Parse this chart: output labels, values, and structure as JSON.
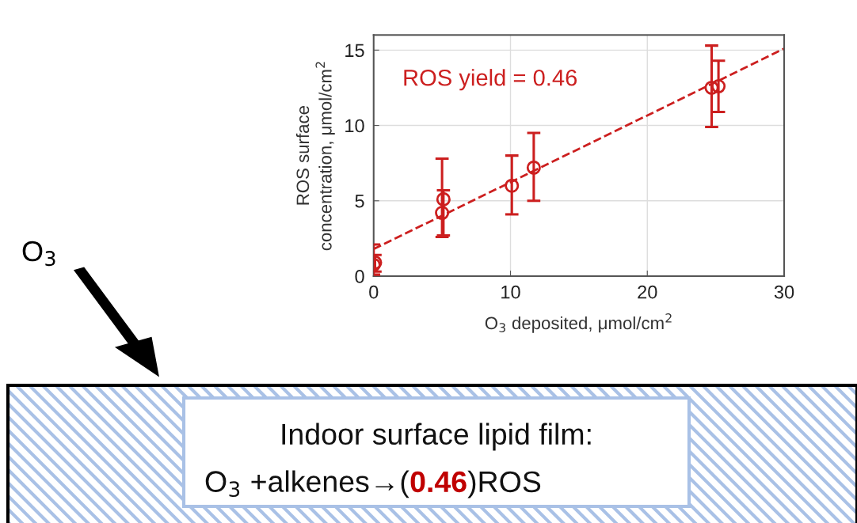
{
  "chart_data": {
    "type": "scatter",
    "xlabel": "O$_{3}$ deposited, μmol/cm$^{2}$",
    "ylabel": "ROS surface\nconcentration, μmol/cm$^{2}$",
    "annotations": [
      "ROS yield = 0.46",
      "O$_{3}$",
      "Indoor surface lipid film:",
      "O$_{3}$ +alkenes→(",
      "0.46",
      ")ROS"
    ],
    "series": [
      {
        "color": "#cc1f1f",
        "marker": "circle",
        "x": [
          0,
          0.1,
          5,
          5.1,
          10.1,
          11.7,
          24.7,
          25.2
        ],
        "values": [
          0.75,
          0.9,
          4.2,
          5.1,
          6.0,
          7.2,
          12.5,
          12.6
        ],
        "errors": [
          [
            0.1,
            2.1
          ],
          [
            0.3,
            1.4
          ],
          [
            2.6,
            7.8
          ],
          [
            2.7,
            5.7
          ],
          [
            4.1,
            8.0
          ],
          [
            5.0,
            9.5
          ],
          [
            9.9,
            15.3
          ],
          [
            10.9,
            14.3
          ]
        ]
      },
      {
        "type": "line",
        "color": "#cc1f1f",
        "line_style": "dashed",
        "marker": "none",
        "x": [
          0,
          30
        ],
        "values": [
          1.8,
          15.1
        ]
      }
    ],
    "xlim": [
      0,
      30
    ],
    "xticks": [
      0,
      10,
      20,
      30
    ],
    "ylim": [
      0,
      16
    ],
    "yticks": [
      0,
      5,
      10,
      15
    ],
    "grid": true
  }
}
